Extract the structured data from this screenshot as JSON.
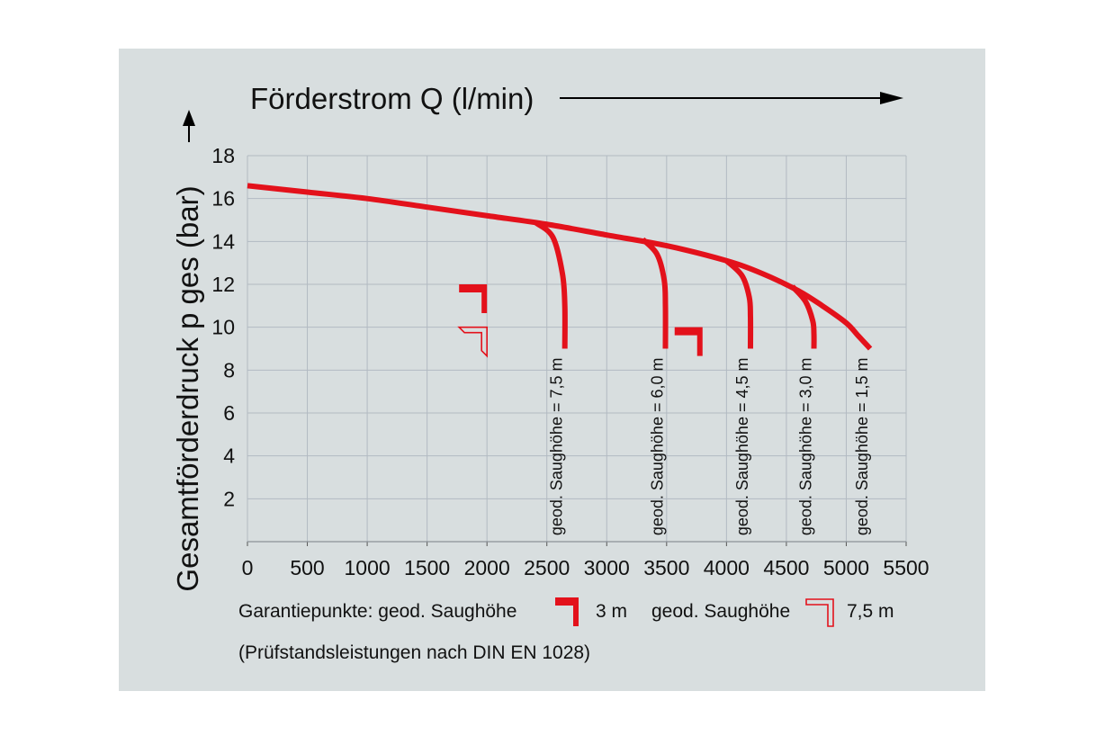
{
  "chart_data": {
    "type": "line",
    "title": "",
    "xlabel": "Förderstrom Q (l/min)",
    "ylabel": "Gesamtförderdruck p ges (bar)",
    "xlim": [
      0,
      5500
    ],
    "ylim": [
      0,
      18
    ],
    "grid": true,
    "x_ticks": [
      "0",
      "500",
      "1000",
      "1500",
      "2000",
      "2500",
      "3000",
      "3500",
      "4000",
      "4500",
      "5000",
      "5500"
    ],
    "y_ticks": [
      "2",
      "4",
      "6",
      "8",
      "10",
      "12",
      "14",
      "16",
      "18"
    ],
    "series": [
      {
        "name": "geod. Saughöhe = 1,5 m",
        "x": [
          0,
          500,
          1000,
          1500,
          2000,
          2500,
          3000,
          3500,
          4000,
          4300,
          4600,
          4800,
          5000,
          5100,
          5200
        ],
        "y": [
          16.6,
          16.3,
          16.0,
          15.6,
          15.2,
          14.8,
          14.3,
          13.8,
          13.1,
          12.5,
          11.7,
          11.0,
          10.2,
          9.6,
          9.0
        ]
      },
      {
        "name": "geod. Saughöhe = 7,5 m",
        "x": [
          2400,
          2550,
          2630,
          2650,
          2650
        ],
        "y": [
          14.9,
          14.2,
          12.5,
          11.0,
          9.0
        ]
      },
      {
        "name": "geod. Saughöhe = 6,0 m",
        "x": [
          3300,
          3420,
          3480,
          3490,
          3490
        ],
        "y": [
          14.1,
          13.4,
          12.2,
          11.0,
          9.0
        ]
      },
      {
        "name": "geod. Saughöhe = 4,5 m",
        "x": [
          4000,
          4130,
          4190,
          4200,
          4200
        ],
        "y": [
          13.1,
          12.4,
          11.4,
          10.5,
          9.0
        ]
      },
      {
        "name": "geod. Saughöhe = 3,0 m",
        "x": [
          4550,
          4660,
          4720,
          4730,
          4730
        ],
        "y": [
          11.9,
          11.2,
          10.3,
          9.7,
          9.0
        ]
      }
    ],
    "guarantee_points": [
      {
        "type": "filled",
        "x": 2000,
        "y": 12
      },
      {
        "type": "outline",
        "x": 2000,
        "y": 10
      },
      {
        "type": "filled",
        "x": 3800,
        "y": 10
      }
    ],
    "colors": {
      "curve": "#e3111b",
      "grid": "#b2bac2",
      "background": "#d8dedf"
    }
  },
  "legend": {
    "prefix": "Garantiepunkte: geod. Saughöhe",
    "filled_label": "3 m",
    "middle_label": "geod. Saughöhe",
    "outline_label": "7,5 m",
    "note": "(Prüfstandsleistungen nach DIN EN 1028)"
  }
}
